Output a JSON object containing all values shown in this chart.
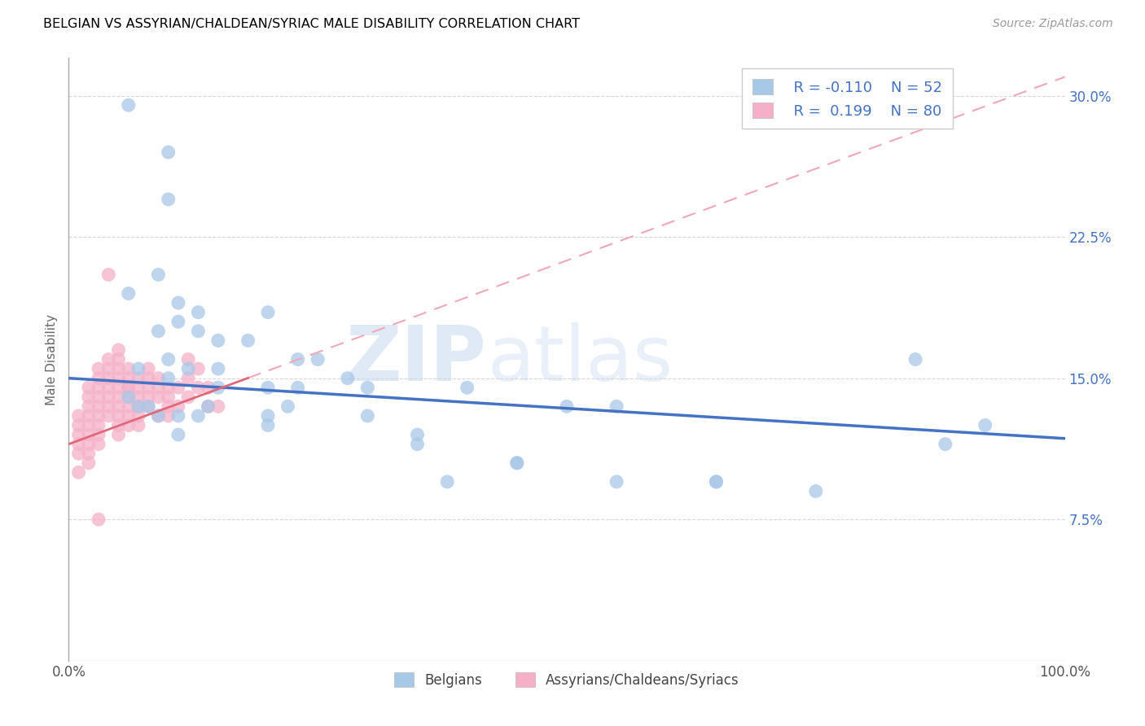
{
  "title": "BELGIAN VS ASSYRIAN/CHALDEAN/SYRIAC MALE DISABILITY CORRELATION CHART",
  "source": "Source: ZipAtlas.com",
  "ylabel": "Male Disability",
  "xlim": [
    0,
    100
  ],
  "ylim": [
    0,
    32
  ],
  "yticks": [
    0,
    7.5,
    15.0,
    22.5,
    30.0
  ],
  "xticks": [
    0,
    25,
    50,
    75,
    100
  ],
  "xtick_labels": [
    "0.0%",
    "",
    "",
    "",
    "100.0%"
  ],
  "ytick_right_labels": [
    "",
    "7.5%",
    "15.0%",
    "22.5%",
    "30.0%"
  ],
  "legend_R1": "R = -0.110",
  "legend_N1": "N = 52",
  "legend_R2": "R =  0.199",
  "legend_N2": "N = 80",
  "color_belgian": "#a8c8e8",
  "color_assyrian": "#f5b0c8",
  "color_line_belgian": "#4472c4",
  "color_line_assyrian_solid": "#e06878",
  "color_line_assyrian_dashed": "#f0a8b8",
  "watermark_zip": "ZIP",
  "watermark_atlas": "atlas",
  "legend_text_color": "#4472c4",
  "bottom_legend_labels": [
    "Belgians",
    "Assyrians/Chaldeans/Syriacs"
  ],
  "bel_line_x0": 0,
  "bel_line_y0": 15.0,
  "bel_line_x1": 100,
  "bel_line_y1": 11.8,
  "ass_line_x0": 0,
  "ass_line_y0": 11.5,
  "ass_line_x1": 100,
  "ass_line_y1": 31.0,
  "ass_solid_end_x": 18,
  "belgians_x": [
    6,
    10,
    10,
    15,
    6,
    9,
    11,
    9,
    11,
    13,
    13,
    15,
    18,
    20,
    7,
    10,
    10,
    12,
    23,
    25,
    28,
    30,
    22,
    20,
    23,
    20,
    14,
    20,
    30,
    35,
    40,
    45,
    50,
    55,
    35,
    45,
    55,
    65,
    75,
    6,
    7,
    8,
    9,
    11,
    11,
    13,
    15,
    38,
    85,
    88,
    92,
    65
  ],
  "belgians_y": [
    29.5,
    27.0,
    24.5,
    15.5,
    19.5,
    20.5,
    19.0,
    17.5,
    18.0,
    18.5,
    17.5,
    17.0,
    17.0,
    18.5,
    15.5,
    16.0,
    15.0,
    15.5,
    16.0,
    16.0,
    15.0,
    13.0,
    13.5,
    13.0,
    14.5,
    14.5,
    13.5,
    12.5,
    14.5,
    12.0,
    14.5,
    10.5,
    13.5,
    13.5,
    11.5,
    10.5,
    9.5,
    9.5,
    9.0,
    14.0,
    13.5,
    13.5,
    13.0,
    13.0,
    12.0,
    13.0,
    14.5,
    9.5,
    16.0,
    11.5,
    12.5,
    9.5
  ],
  "assyrians_x": [
    1,
    1,
    1,
    1,
    1,
    1,
    2,
    2,
    2,
    2,
    2,
    2,
    2,
    2,
    2,
    3,
    3,
    3,
    3,
    3,
    3,
    3,
    3,
    3,
    4,
    4,
    4,
    4,
    4,
    4,
    4,
    5,
    5,
    5,
    5,
    5,
    5,
    5,
    5,
    5,
    5,
    6,
    6,
    6,
    6,
    6,
    6,
    6,
    7,
    7,
    7,
    7,
    7,
    7,
    8,
    8,
    8,
    8,
    8,
    9,
    9,
    9,
    9,
    10,
    10,
    10,
    10,
    11,
    11,
    12,
    12,
    12,
    13,
    13,
    14,
    14,
    15,
    4,
    6,
    3
  ],
  "assyrians_y": [
    13.0,
    12.5,
    12.0,
    11.5,
    11.0,
    10.0,
    14.5,
    14.0,
    13.5,
    13.0,
    12.5,
    12.0,
    11.5,
    11.0,
    10.5,
    15.5,
    15.0,
    14.5,
    14.0,
    13.5,
    13.0,
    12.5,
    12.0,
    11.5,
    16.0,
    15.5,
    15.0,
    14.5,
    14.0,
    13.5,
    13.0,
    16.5,
    16.0,
    15.5,
    15.0,
    14.5,
    14.0,
    13.5,
    13.0,
    12.5,
    12.0,
    15.5,
    15.0,
    14.5,
    14.0,
    13.5,
    13.0,
    12.5,
    15.0,
    14.5,
    14.0,
    13.5,
    13.0,
    12.5,
    15.5,
    15.0,
    14.5,
    14.0,
    13.5,
    15.0,
    14.5,
    14.0,
    13.0,
    14.5,
    14.0,
    13.5,
    13.0,
    14.5,
    13.5,
    16.0,
    15.0,
    14.0,
    15.5,
    14.5,
    14.5,
    13.5,
    13.5,
    20.5,
    14.5,
    7.5
  ]
}
